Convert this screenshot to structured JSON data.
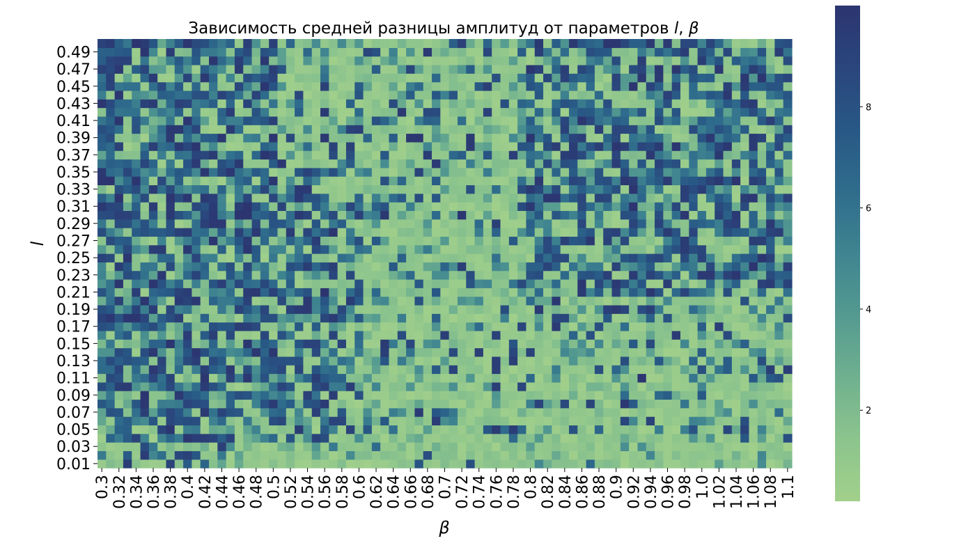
{
  "chart_data": {
    "type": "heatmap",
    "title": "Зависимость средней разницы амплитуд от параметров l, β",
    "title_parts": {
      "prefix": "Зависимость средней разницы амплитуд от параметров ",
      "var1": "l",
      "separator": ", ",
      "var2": "β"
    },
    "xlabel": "β",
    "ylabel": "l",
    "x_tick_labels": [
      "0.3",
      "0.32",
      "0.34",
      "0.36",
      "0.38",
      "0.4",
      "0.42",
      "0.44",
      "0.46",
      "0.48",
      "0.5",
      "0.52",
      "0.54",
      "0.56",
      "0.58",
      "0.6",
      "0.62",
      "0.64",
      "0.66",
      "0.68",
      "0.7",
      "0.72",
      "0.74",
      "0.76",
      "0.78",
      "0.8",
      "0.82",
      "0.84",
      "0.86",
      "0.88",
      "0.9",
      "0.92",
      "0.94",
      "0.96",
      "0.98",
      "1.0",
      "1.02",
      "1.04",
      "1.06",
      "1.08",
      "1.1"
    ],
    "y_tick_labels_top_to_bottom": [
      "0.49",
      "0.47",
      "0.45",
      "0.43",
      "0.41",
      "0.39",
      "0.37",
      "0.35",
      "0.33",
      "0.31",
      "0.29",
      "0.27",
      "0.25",
      "0.23",
      "0.21",
      "0.19",
      "0.17",
      "0.15",
      "0.13",
      "0.11",
      "0.09",
      "0.07",
      "0.05",
      "0.03",
      "0.01"
    ],
    "x_range": [
      0.3,
      1.11
    ],
    "y_range": [
      0.01,
      0.5
    ],
    "step": 0.01,
    "colorbar": {
      "ticks": [
        2,
        4,
        6,
        8
      ],
      "tick_labels": [
        "2",
        "4",
        "6",
        "8"
      ],
      "range": [
        0.2,
        10.0
      ],
      "colors": [
        "#a2d08b",
        "#8cc48d",
        "#6fb08f",
        "#549a90",
        "#3f8490",
        "#2f6c8c",
        "#285885",
        "#2a467c",
        "#2c3570"
      ]
    },
    "grid": false
  }
}
